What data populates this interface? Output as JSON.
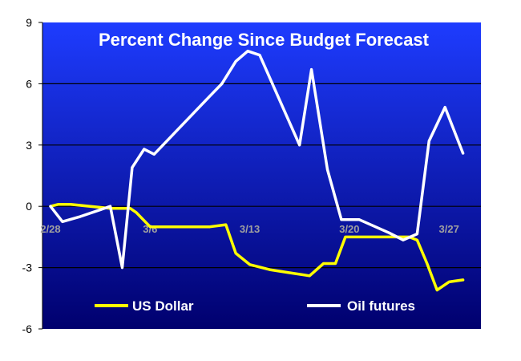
{
  "chart_data": {
    "type": "line",
    "title": "Percent Change Since Budget Forecast",
    "xlabel": "",
    "ylabel": "",
    "ylim": [
      -6,
      9
    ],
    "yticks": [
      -6,
      -3,
      0,
      3,
      6,
      9
    ],
    "ytick_labels": [
      "-6",
      "-3",
      "0",
      "3",
      "6",
      "9"
    ],
    "x_range": [
      0,
      21.2
    ],
    "category_labels": [
      {
        "label": "2/28",
        "x": 0
      },
      {
        "label": "3/6",
        "x": 5
      },
      {
        "label": "3/13",
        "x": 10
      },
      {
        "label": "3/20",
        "x": 15
      },
      {
        "label": "3/27",
        "x": 20
      }
    ],
    "grid": "horizontal",
    "legend_position": "bottom",
    "series": [
      {
        "name": "US Dollar",
        "color": "#ffff00",
        "points": [
          [
            0,
            0
          ],
          [
            0.4,
            0.1
          ],
          [
            1,
            0.1
          ],
          [
            2,
            0
          ],
          [
            3,
            -0.1
          ],
          [
            4,
            -0.1
          ],
          [
            4.3,
            -0.3
          ],
          [
            5,
            -1.0
          ],
          [
            6,
            -1.0
          ],
          [
            7,
            -1.0
          ],
          [
            8,
            -1.0
          ],
          [
            8.8,
            -0.9
          ],
          [
            9.3,
            -2.3
          ],
          [
            10,
            -2.85
          ],
          [
            11,
            -3.1
          ],
          [
            12,
            -3.25
          ],
          [
            13,
            -3.4
          ],
          [
            13.7,
            -2.8
          ],
          [
            14.3,
            -2.8
          ],
          [
            14.8,
            -1.5
          ],
          [
            16,
            -1.5
          ],
          [
            17,
            -1.5
          ],
          [
            18,
            -1.5
          ],
          [
            18.4,
            -1.65
          ],
          [
            18.9,
            -2.8
          ],
          [
            19.4,
            -4.1
          ],
          [
            20,
            -3.7
          ],
          [
            20.7,
            -3.6
          ]
        ]
      },
      {
        "name": "Oil futures",
        "color": "#ffffff",
        "points": [
          [
            0,
            0
          ],
          [
            0.6,
            -0.75
          ],
          [
            1.5,
            -0.5
          ],
          [
            3,
            0
          ],
          [
            3.6,
            -3.0
          ],
          [
            4.1,
            1.9
          ],
          [
            4.7,
            2.8
          ],
          [
            5.2,
            2.55
          ],
          [
            8,
            5.4
          ],
          [
            8.6,
            6.0
          ],
          [
            9.3,
            7.1
          ],
          [
            9.9,
            7.6
          ],
          [
            10.5,
            7.4
          ],
          [
            12.5,
            3.0
          ],
          [
            13.1,
            6.7
          ],
          [
            13.9,
            1.8
          ],
          [
            14.6,
            -0.65
          ],
          [
            15.5,
            -0.65
          ],
          [
            17,
            -1.3
          ],
          [
            17.7,
            -1.65
          ],
          [
            18.4,
            -1.35
          ],
          [
            19,
            3.2
          ],
          [
            19.8,
            4.85
          ],
          [
            20.7,
            2.6
          ]
        ]
      }
    ]
  }
}
